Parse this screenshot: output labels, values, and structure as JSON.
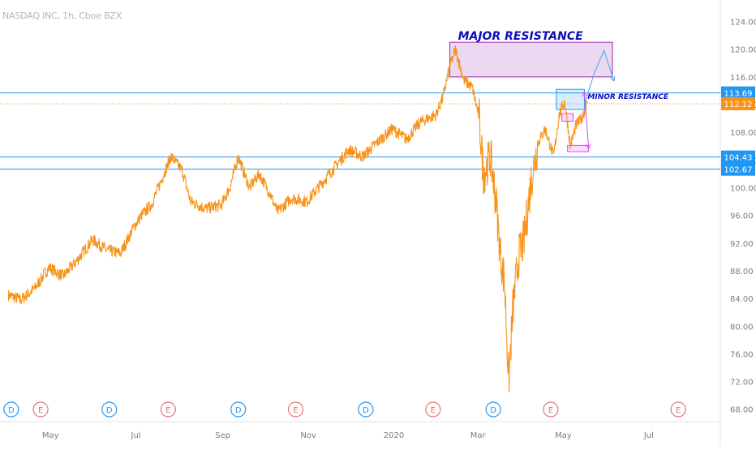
{
  "chart_data": {
    "type": "line",
    "title": "NASDAQ INC, 1h, Cboe BZX",
    "x_ticks": [
      "May",
      "Jul",
      "Sep",
      "Nov",
      "2020",
      "Mar",
      "May",
      "Jul"
    ],
    "y_ticks": [
      "124.00",
      "120.00",
      "116.00",
      "112.00",
      "108.00",
      "104.00",
      "100.00",
      "96.00",
      "92.00",
      "88.00",
      "84.00",
      "80.00",
      "76.00",
      "72.00",
      "68.00"
    ],
    "ylim": [
      68,
      125
    ],
    "series": [
      {
        "color": "#f7931a",
        "values": [
          [
            "2019-04-01",
            84.5
          ],
          [
            "2019-04-10",
            83.8
          ],
          [
            "2019-04-20",
            85.5
          ],
          [
            "2019-04-30",
            88.5
          ],
          [
            "2019-05-10",
            87.2
          ],
          [
            "2019-05-20",
            89.5
          ],
          [
            "2019-05-31",
            92.5
          ],
          [
            "2019-06-10",
            91.0
          ],
          [
            "2019-06-20",
            90.5
          ],
          [
            "2019-06-30",
            94.5
          ],
          [
            "2019-07-05",
            96.0
          ],
          [
            "2019-07-12",
            97.5
          ],
          [
            "2019-07-20",
            101.5
          ],
          [
            "2019-07-26",
            104.5
          ],
          [
            "2019-08-03",
            102.5
          ],
          [
            "2019-08-09",
            98.0
          ],
          [
            "2019-08-20",
            97.0
          ],
          [
            "2019-08-31",
            97.5
          ],
          [
            "2019-09-06",
            100.0
          ],
          [
            "2019-09-12",
            104.5
          ],
          [
            "2019-09-20",
            100.0
          ],
          [
            "2019-09-27",
            102.0
          ],
          [
            "2019-10-05",
            99.0
          ],
          [
            "2019-10-10",
            96.5
          ],
          [
            "2019-10-20",
            98.5
          ],
          [
            "2019-10-31",
            98.0
          ],
          [
            "2019-11-10",
            100.5
          ],
          [
            "2019-11-20",
            103.0
          ],
          [
            "2019-11-30",
            105.5
          ],
          [
            "2019-12-10",
            104.5
          ],
          [
            "2019-12-20",
            106.5
          ],
          [
            "2019-12-31",
            108.5
          ],
          [
            "2020-01-10",
            107.0
          ],
          [
            "2020-01-20",
            109.5
          ],
          [
            "2020-01-31",
            110.5
          ],
          [
            "2020-02-05",
            113.0
          ],
          [
            "2020-02-10",
            117.5
          ],
          [
            "2020-02-14",
            120.0
          ],
          [
            "2020-02-20",
            115.5
          ],
          [
            "2020-02-26",
            114.5
          ],
          [
            "2020-03-02",
            110.0
          ],
          [
            "2020-03-05",
            102.0
          ],
          [
            "2020-03-10",
            104.5
          ],
          [
            "2020-03-14",
            98.0
          ],
          [
            "2020-03-17",
            90.5
          ],
          [
            "2020-03-20",
            86.5
          ],
          [
            "2020-03-23",
            72.0
          ],
          [
            "2020-03-26",
            82.5
          ],
          [
            "2020-03-30",
            90.0
          ],
          [
            "2020-04-03",
            92.5
          ],
          [
            "2020-04-08",
            101.0
          ],
          [
            "2020-04-13",
            106.5
          ],
          [
            "2020-04-18",
            108.5
          ],
          [
            "2020-04-24",
            104.5
          ],
          [
            "2020-04-28",
            110.5
          ],
          [
            "2020-05-02",
            112.5
          ],
          [
            "2020-05-06",
            106.0
          ],
          [
            "2020-05-10",
            109.0
          ],
          [
            "2020-05-14",
            110.0
          ],
          [
            "2020-05-18",
            112.1
          ]
        ]
      }
    ],
    "horizontal_levels": [
      {
        "value": 113.69,
        "label": "113.69",
        "color": "#2196f3",
        "style": "solid"
      },
      {
        "value": 112.12,
        "label": "112.12",
        "color": "#f7931a",
        "style": "dotted"
      },
      {
        "value": 104.43,
        "label": "104.43",
        "color": "#2196f3",
        "style": "solid"
      },
      {
        "value": 102.67,
        "label": "102.67",
        "color": "#2196f3",
        "style": "solid"
      }
    ],
    "zones": [
      {
        "label": "MAJOR RESISTANCE",
        "from": "2020-02-10",
        "to": "2020-06-05",
        "low": 116.0,
        "high": 121.0,
        "color": "#9c27b0"
      },
      {
        "label": "MINOR RESISTANCE",
        "from": "2020-04-26",
        "to": "2020-05-16",
        "low": 111.3,
        "high": 114.2,
        "color": "#2196f3"
      },
      {
        "label": "",
        "from": "2020-04-30",
        "to": "2020-05-08",
        "low": 109.6,
        "high": 110.7,
        "color": "#e040fb"
      },
      {
        "label": "",
        "from": "2020-05-04",
        "to": "2020-05-19",
        "low": 105.2,
        "high": 106.1,
        "color": "#e040fb"
      }
    ],
    "projection_up": [
      [
        "2020-05-16",
        112.0
      ],
      [
        "2020-05-23",
        116.5
      ],
      [
        "2020-05-30",
        119.8
      ],
      [
        "2020-06-06",
        115.5
      ]
    ],
    "projection_down": [
      [
        "2020-05-16",
        113.7
      ],
      [
        "2020-05-19",
        105.8
      ]
    ],
    "events": [
      {
        "type": "D",
        "date": "2019-04-03"
      },
      {
        "type": "E",
        "date": "2019-04-24"
      },
      {
        "type": "D",
        "date": "2019-06-12"
      },
      {
        "type": "E",
        "date": "2019-07-24"
      },
      {
        "type": "D",
        "date": "2019-09-12"
      },
      {
        "type": "E",
        "date": "2019-10-23"
      },
      {
        "type": "D",
        "date": "2019-12-12"
      },
      {
        "type": "E",
        "date": "2020-01-29"
      },
      {
        "type": "D",
        "date": "2020-03-12"
      },
      {
        "type": "E",
        "date": "2020-04-22"
      },
      {
        "type": "E",
        "date": "2020-07-22"
      }
    ],
    "grid": false
  }
}
